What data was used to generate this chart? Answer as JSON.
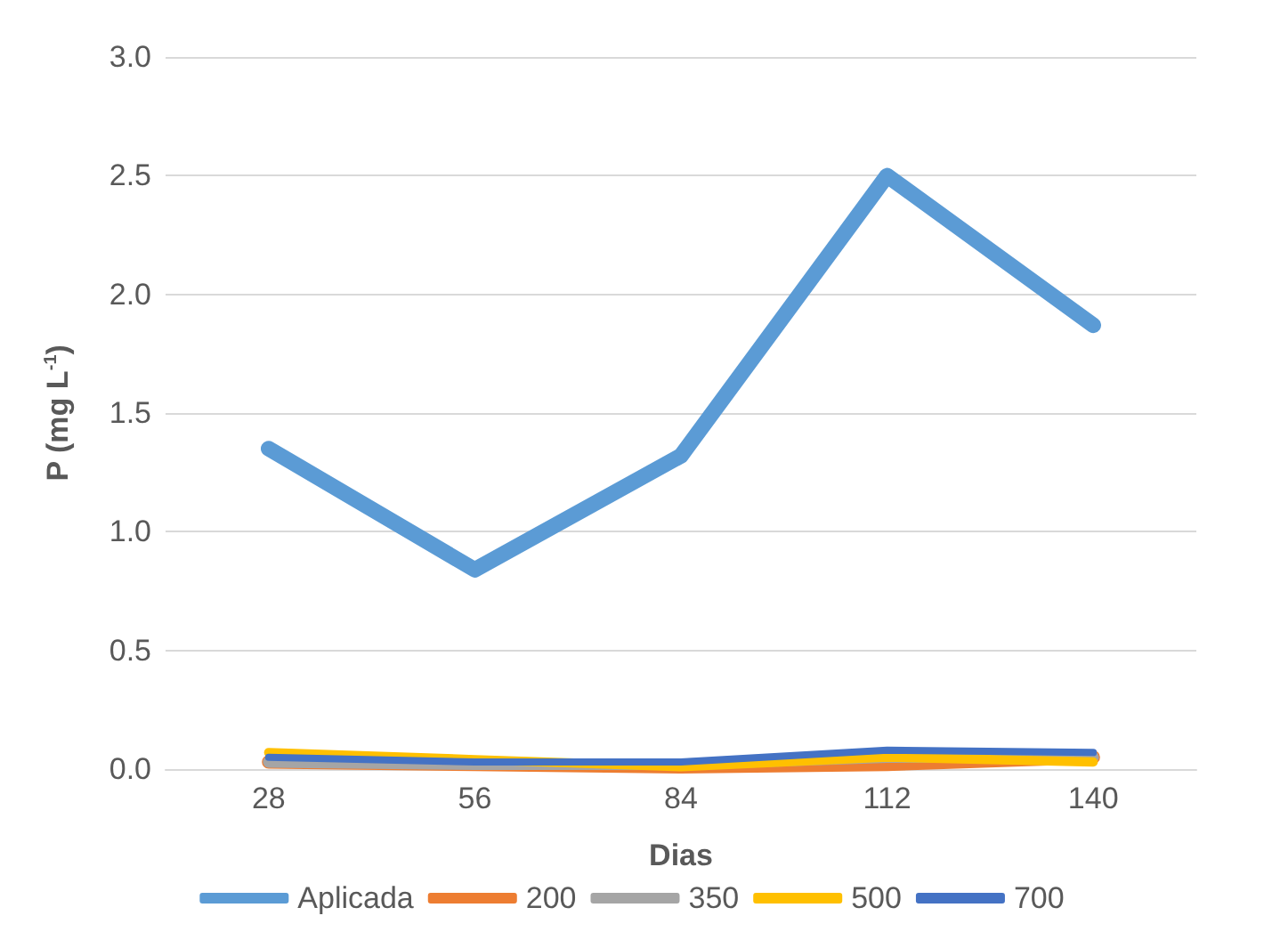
{
  "chart_data": {
    "type": "line",
    "xlabel": "Dias",
    "ylabel": "P (mg L$^{-1}$)",
    "categories": [
      "28",
      "56",
      "84",
      "112",
      "140"
    ],
    "series": [
      {
        "name": "Aplicada",
        "color": "#5b9bd5",
        "values": [
          1.35,
          0.84,
          1.32,
          2.5,
          1.87
        ]
      },
      {
        "name": "200",
        "color": "#ed7d31",
        "values": [
          0.03,
          0.02,
          0.01,
          0.02,
          0.05
        ]
      },
      {
        "name": "350",
        "color": "#a5a5a5",
        "values": [
          0.03,
          0.02,
          0.02,
          0.05,
          0.05
        ]
      },
      {
        "name": "500",
        "color": "#ffc000",
        "values": [
          0.07,
          0.04,
          0.01,
          0.05,
          0.03
        ]
      },
      {
        "name": "700",
        "color": "#4472c4",
        "values": [
          0.05,
          0.03,
          0.03,
          0.08,
          0.07
        ]
      }
    ],
    "ylim": [
      0,
      3
    ],
    "yticks": [
      {
        "value": 0,
        "label": "0.0"
      },
      {
        "value": 0.5,
        "label": "0.5"
      },
      {
        "value": 1,
        "label": "1.0"
      },
      {
        "value": 1.5,
        "label": "1.5"
      },
      {
        "value": 2,
        "label": "2.0"
      },
      {
        "value": 2.5,
        "label": "2.5"
      },
      {
        "value": 3,
        "label": "3.0"
      }
    ],
    "grid": "y",
    "legend": "bottom",
    "marker": "none",
    "line_style": "solid"
  }
}
